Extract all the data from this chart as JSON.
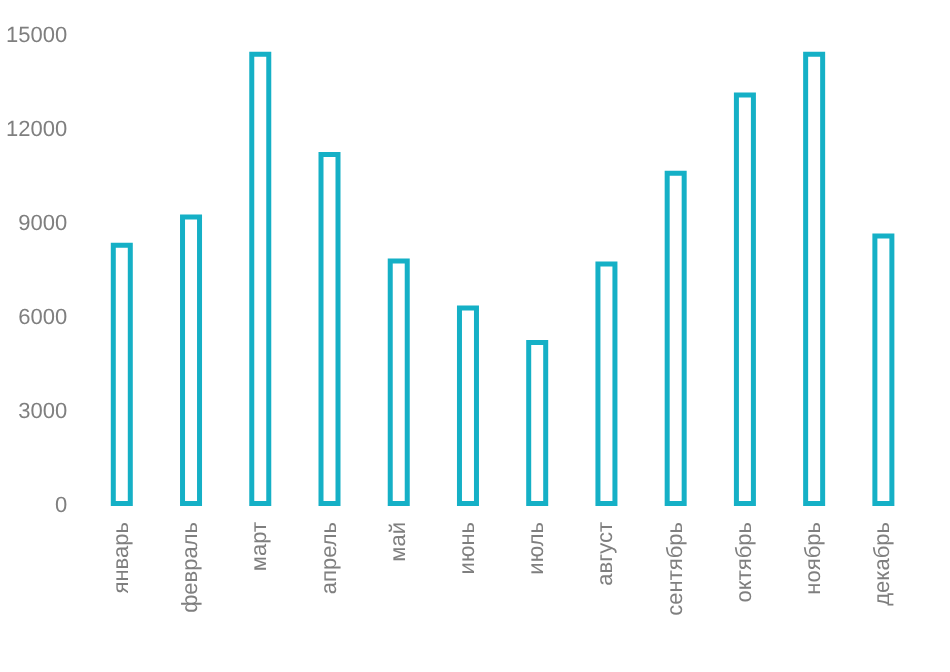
{
  "chart_data": {
    "type": "bar",
    "categories": [
      "январь",
      "февраль",
      "март",
      "апрель",
      "май",
      "июнь",
      "июль",
      "август",
      "сентябрь",
      "октябрь",
      "ноябрь",
      "декабрь"
    ],
    "values": [
      8400,
      9300,
      14500,
      11300,
      7900,
      6400,
      5300,
      7800,
      10700,
      13200,
      14500,
      8700
    ],
    "color": "#15b0c6",
    "ylim": [
      0,
      15000
    ],
    "yticks": [
      0,
      3000,
      6000,
      9000,
      12000,
      15000
    ],
    "grid": false
  }
}
